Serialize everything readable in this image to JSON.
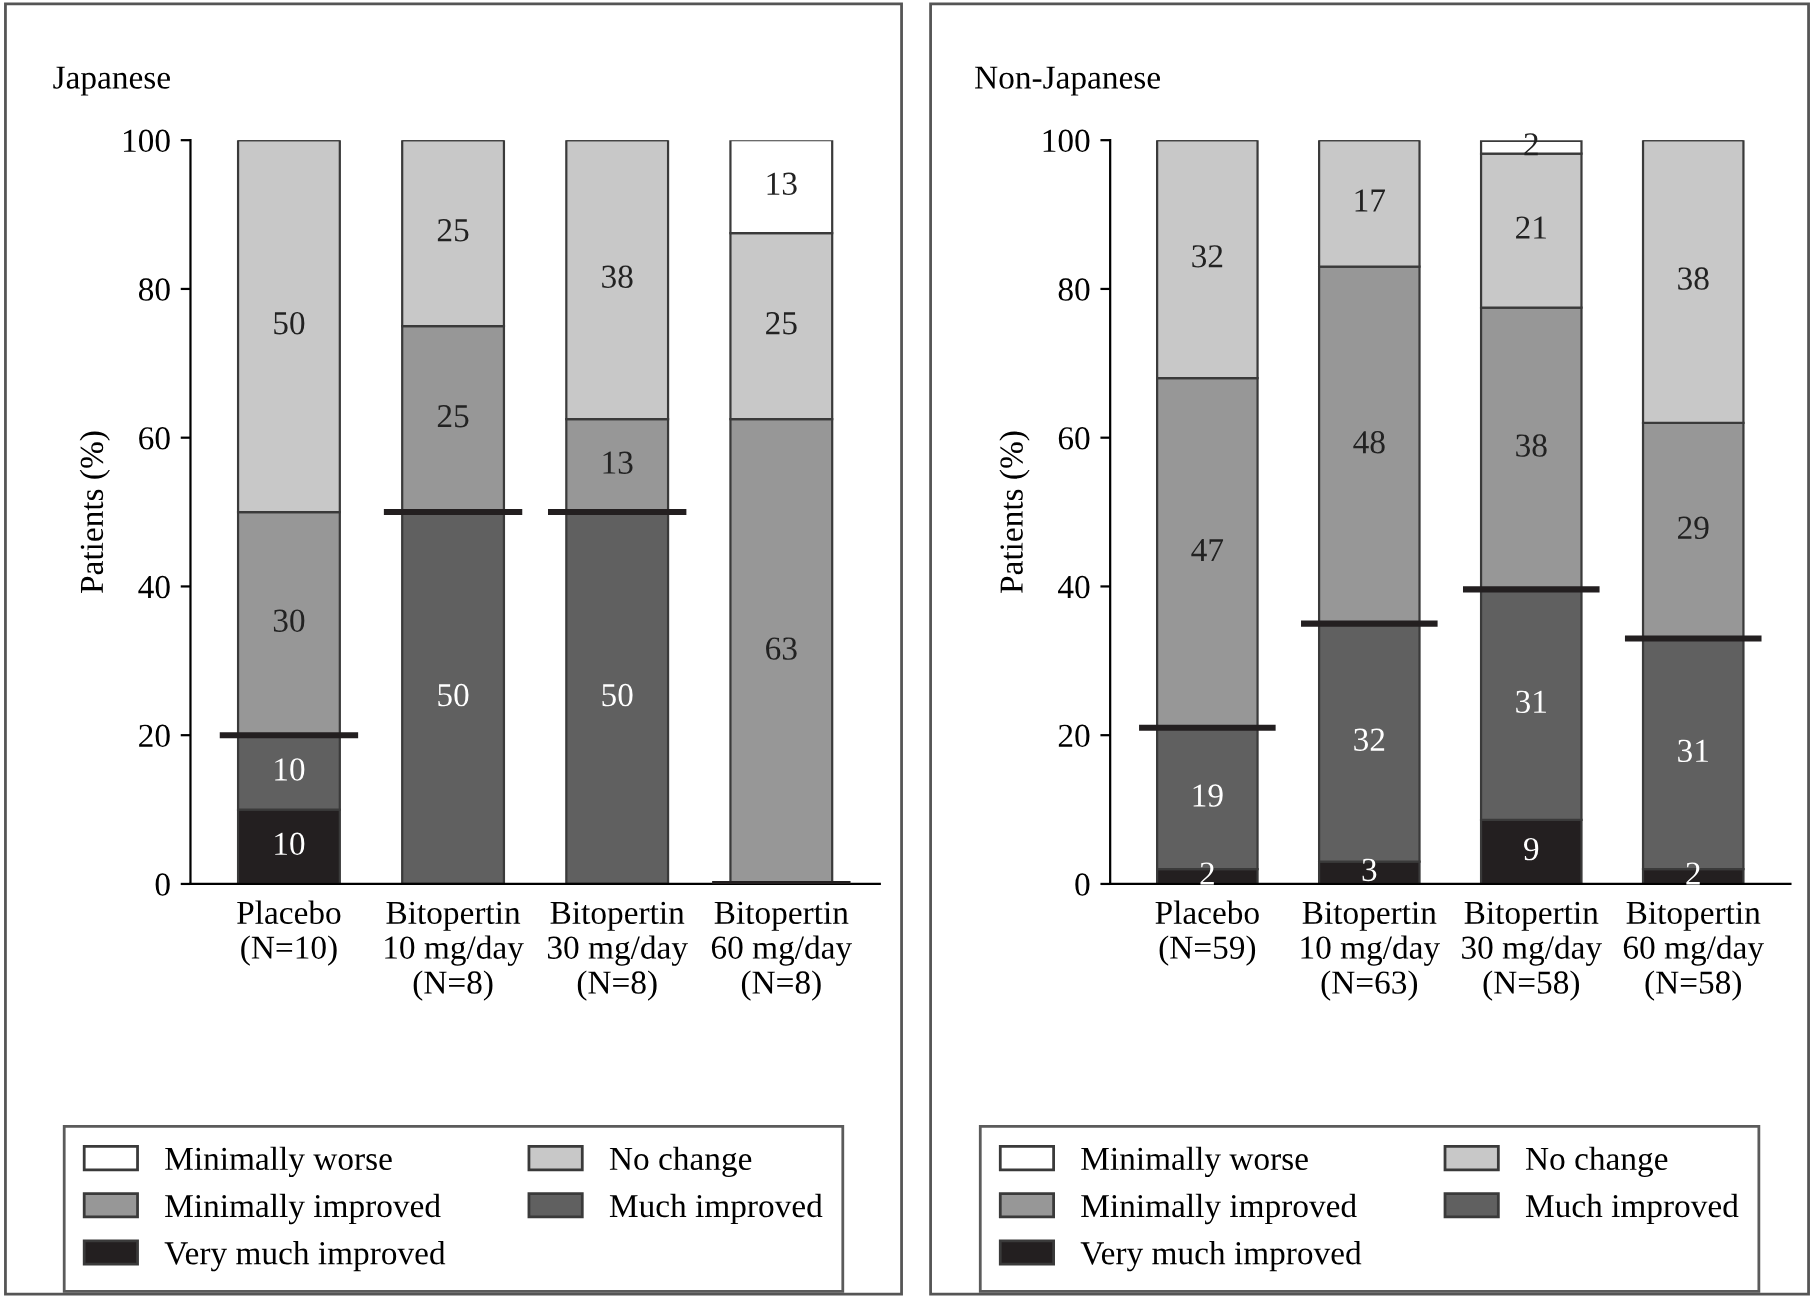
{
  "chart_data": [
    {
      "type": "bar",
      "title": "Japanese",
      "ylabel": "Patients (%)",
      "stacked": true,
      "legend": "bottom",
      "grid": false,
      "categories": [
        "Placebo\n(N=10)",
        "Bitopertin\n10 mg/day\n(N=8)",
        "Bitopertin\n30 mg/day\n(N=8)",
        "Bitopertin\n60 mg/day\n(N=8)"
      ],
      "ylim": [
        0,
        100
      ],
      "yticks": [
        0,
        20,
        40,
        60,
        80,
        100
      ],
      "series": [
        {
          "name": "Very much improved",
          "color": "#231f20",
          "values": [
            10,
            null,
            null,
            null
          ],
          "value_labels": [
            "10",
            null,
            null,
            null
          ]
        },
        {
          "name": "Much improved",
          "color": "#606060",
          "values": [
            10,
            50,
            50,
            null
          ],
          "value_labels": [
            "10",
            "50",
            "50",
            null
          ]
        },
        {
          "name": "Minimally improved",
          "color": "#979797",
          "values": [
            30,
            25,
            12.5,
            62.5
          ],
          "value_labels": [
            "30",
            "25",
            "13",
            "63"
          ]
        },
        {
          "name": "No change",
          "color": "#c8c8c8",
          "values": [
            50,
            25,
            37.5,
            25
          ],
          "value_labels": [
            "50",
            "25",
            "38",
            "25"
          ]
        },
        {
          "name": "Minimally worse",
          "color": "#ffffff",
          "values": [
            null,
            null,
            null,
            12.5
          ],
          "value_labels": [
            null,
            null,
            null,
            "13"
          ]
        }
      ]
    },
    {
      "type": "bar",
      "title": "Non-Japanese",
      "ylabel": "Patients (%)",
      "stacked": true,
      "legend": "bottom",
      "grid": false,
      "categories": [
        "Placebo\n(N=59)",
        "Bitopertin\n10 mg/day\n(N=63)",
        "Bitopertin\n30 mg/day\n(N=58)",
        "Bitopertin\n60 mg/day\n(N=58)"
      ],
      "ylim": [
        0,
        100
      ],
      "yticks": [
        0,
        20,
        40,
        60,
        80,
        100
      ],
      "series": [
        {
          "name": "Very much improved",
          "color": "#231f20",
          "values": [
            2,
            3,
            8.6,
            2
          ],
          "value_labels": [
            "2",
            "3",
            "9",
            "2"
          ]
        },
        {
          "name": "Much improved",
          "color": "#606060",
          "values": [
            19,
            32,
            31,
            31
          ],
          "value_labels": [
            "19",
            "32",
            "31",
            "31"
          ]
        },
        {
          "name": "Minimally improved",
          "color": "#979797",
          "values": [
            47,
            48,
            37.9,
            29
          ],
          "value_labels": [
            "47",
            "48",
            "38",
            "29"
          ]
        },
        {
          "name": "No change",
          "color": "#c8c8c8",
          "values": [
            32,
            17,
            20.7,
            38
          ],
          "value_labels": [
            "32",
            "17",
            "21",
            "38"
          ]
        },
        {
          "name": "Minimally worse",
          "color": "#ffffff",
          "values": [
            null,
            null,
            1.7,
            null
          ],
          "value_labels": [
            null,
            null,
            "2",
            null
          ]
        }
      ]
    }
  ]
}
